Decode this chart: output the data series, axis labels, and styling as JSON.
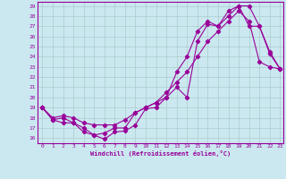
{
  "xlabel": "Windchill (Refroidissement éolien,°C)",
  "bg_color": "#cbe8f0",
  "line_color": "#990099",
  "grid_color": "#aacccc",
  "xlim": [
    -0.5,
    23.3
  ],
  "ylim": [
    15.5,
    29.4
  ],
  "yticks": [
    16,
    17,
    18,
    19,
    20,
    21,
    22,
    23,
    24,
    25,
    26,
    27,
    28,
    29
  ],
  "xticks": [
    0,
    1,
    2,
    3,
    4,
    5,
    6,
    7,
    8,
    9,
    10,
    11,
    12,
    13,
    14,
    15,
    16,
    17,
    18,
    19,
    20,
    21,
    22,
    23
  ],
  "line1_x": [
    0,
    1,
    2,
    3,
    4,
    5,
    6,
    7,
    8,
    9,
    10,
    11,
    12,
    13,
    14,
    15,
    16,
    17,
    18,
    19,
    20,
    21,
    22,
    23
  ],
  "line1_y": [
    19.0,
    17.8,
    17.5,
    17.5,
    16.6,
    16.3,
    15.9,
    16.6,
    16.7,
    17.3,
    18.9,
    19.0,
    20.0,
    21.0,
    20.0,
    25.5,
    27.2,
    27.0,
    28.0,
    29.0,
    29.0,
    27.0,
    24.3,
    22.8
  ],
  "line2_x": [
    0,
    1,
    2,
    3,
    4,
    5,
    6,
    7,
    8,
    9,
    10,
    11,
    12,
    13,
    14,
    15,
    16,
    17,
    18,
    19,
    20,
    21,
    22,
    23
  ],
  "line2_y": [
    19.0,
    17.8,
    18.0,
    17.5,
    17.0,
    16.3,
    16.5,
    17.0,
    17.0,
    18.5,
    19.0,
    19.5,
    20.0,
    22.5,
    24.0,
    26.5,
    27.5,
    27.0,
    28.5,
    29.0,
    27.0,
    27.0,
    24.5,
    22.8
  ],
  "line3_x": [
    0,
    1,
    2,
    3,
    4,
    5,
    6,
    7,
    8,
    9,
    10,
    11,
    12,
    13,
    14,
    15,
    16,
    17,
    18,
    19,
    20,
    21,
    22,
    23
  ],
  "line3_y": [
    19.0,
    18.0,
    18.2,
    18.0,
    17.5,
    17.3,
    17.3,
    17.3,
    17.8,
    18.5,
    19.0,
    19.5,
    20.5,
    21.5,
    22.5,
    24.0,
    25.5,
    26.5,
    27.5,
    28.5,
    27.5,
    23.5,
    23.0,
    22.8
  ]
}
